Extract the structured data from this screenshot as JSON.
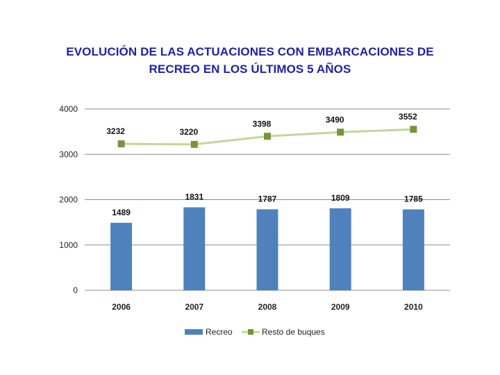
{
  "title_lines": [
    "EVOLUCIÓN DE LAS ACTUACIONES CON EMBARCACIONES DE",
    "RECREO EN LOS ÚLTIMOS 5 AÑOS"
  ],
  "colors": {
    "title": "#1f1fa8",
    "bar": "#4f81bd",
    "line": "#c3d69b",
    "marker": "#77933c",
    "grid": "#8c8c8c"
  },
  "chart_data": {
    "type": "bar",
    "categories": [
      "2006",
      "2007",
      "2008",
      "2009",
      "2010"
    ],
    "series": [
      {
        "name": "Recreo",
        "type": "bar",
        "values": [
          1489,
          1831,
          1787,
          1809,
          1785
        ]
      },
      {
        "name": "Resto de buques",
        "type": "line",
        "values": [
          3232,
          3220,
          3398,
          3490,
          3552
        ]
      }
    ],
    "y_ticks": [
      "0",
      "1000",
      "2000",
      "3000",
      "4000"
    ],
    "ylim": [
      0,
      4000
    ],
    "grid": true,
    "legend_position": "bottom",
    "data_labels": true
  }
}
